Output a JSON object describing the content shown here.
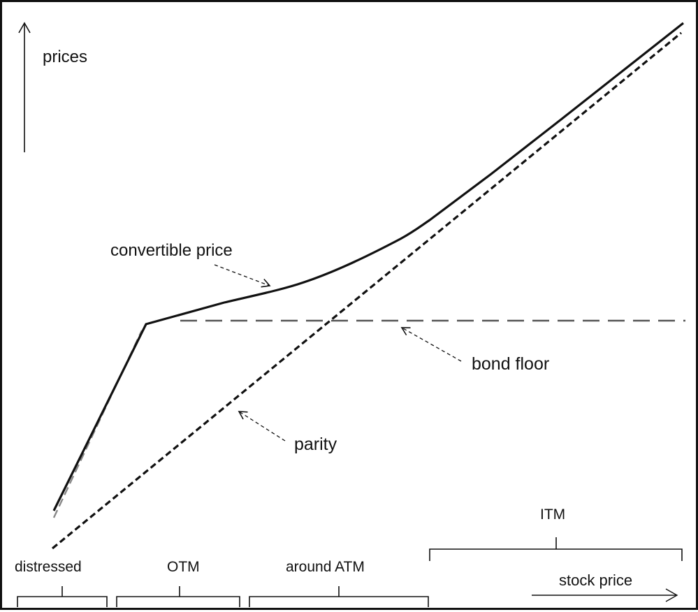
{
  "chart_data": {
    "type": "line",
    "title": "",
    "xlabel": "stock price",
    "ylabel": "prices",
    "series": [
      {
        "name": "convertible price",
        "style": "solid"
      },
      {
        "name": "bond floor",
        "style": "long-dash"
      },
      {
        "name": "parity",
        "style": "short-dash"
      }
    ],
    "regions": [
      "distressed",
      "OTM",
      "around ATM",
      "ITM"
    ]
  },
  "labels": {
    "y_axis": "prices",
    "x_axis": "stock price",
    "convertible": "convertible price",
    "bond_floor": "bond floor",
    "parity": "parity",
    "region_distressed": "distressed",
    "region_otm": "OTM",
    "region_atm": "around ATM",
    "region_itm": "ITM"
  },
  "colors": {
    "line": "#111111",
    "bond_floor": "#555555"
  }
}
